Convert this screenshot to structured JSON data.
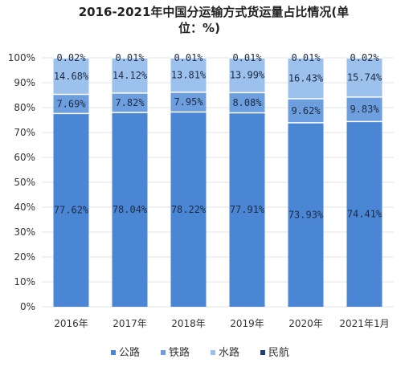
{
  "chart_data": {
    "type": "bar",
    "stacked": true,
    "percent": true,
    "title_line1": "2016-2021年中国分运输方式货运量占比情况(单",
    "title_line2": "位：%)",
    "categories": [
      "2016年",
      "2017年",
      "2018年",
      "2019年",
      "2020年",
      "2021年1月"
    ],
    "ylim": [
      0,
      100
    ],
    "yticks": [
      "0%",
      "10%",
      "20%",
      "30%",
      "40%",
      "50%",
      "60%",
      "70%",
      "80%",
      "90%",
      "100%"
    ],
    "grid": true,
    "legend_position": "bottom",
    "series": [
      {
        "name": "公路",
        "color": "#4a86d4",
        "values": [
          77.62,
          78.04,
          78.22,
          77.91,
          73.93,
          74.41
        ],
        "labels": [
          "77.62%",
          "78.04%",
          "78.22%",
          "77.91%",
          "73.93%",
          "74.41%"
        ]
      },
      {
        "name": "铁路",
        "color": "#6d9fde",
        "values": [
          7.69,
          7.82,
          7.95,
          8.08,
          9.62,
          9.83
        ],
        "labels": [
          "7.69%",
          "7.82%",
          "7.95%",
          "8.08%",
          "9.62%",
          "9.83%"
        ]
      },
      {
        "name": "水路",
        "color": "#9cc1ec",
        "values": [
          14.68,
          14.12,
          13.81,
          13.99,
          16.43,
          15.74
        ],
        "labels": [
          "14.68%",
          "14.12%",
          "13.81%",
          "13.99%",
          "16.43%",
          "15.74%"
        ]
      },
      {
        "name": "民航",
        "color": "#1f3f7a",
        "values": [
          0.02,
          0.01,
          0.01,
          0.01,
          0.01,
          0.02
        ],
        "labels": [
          "0.02%",
          "0.01%",
          "0.01%",
          "0.01%",
          "0.01%",
          "0.02%"
        ]
      }
    ]
  }
}
